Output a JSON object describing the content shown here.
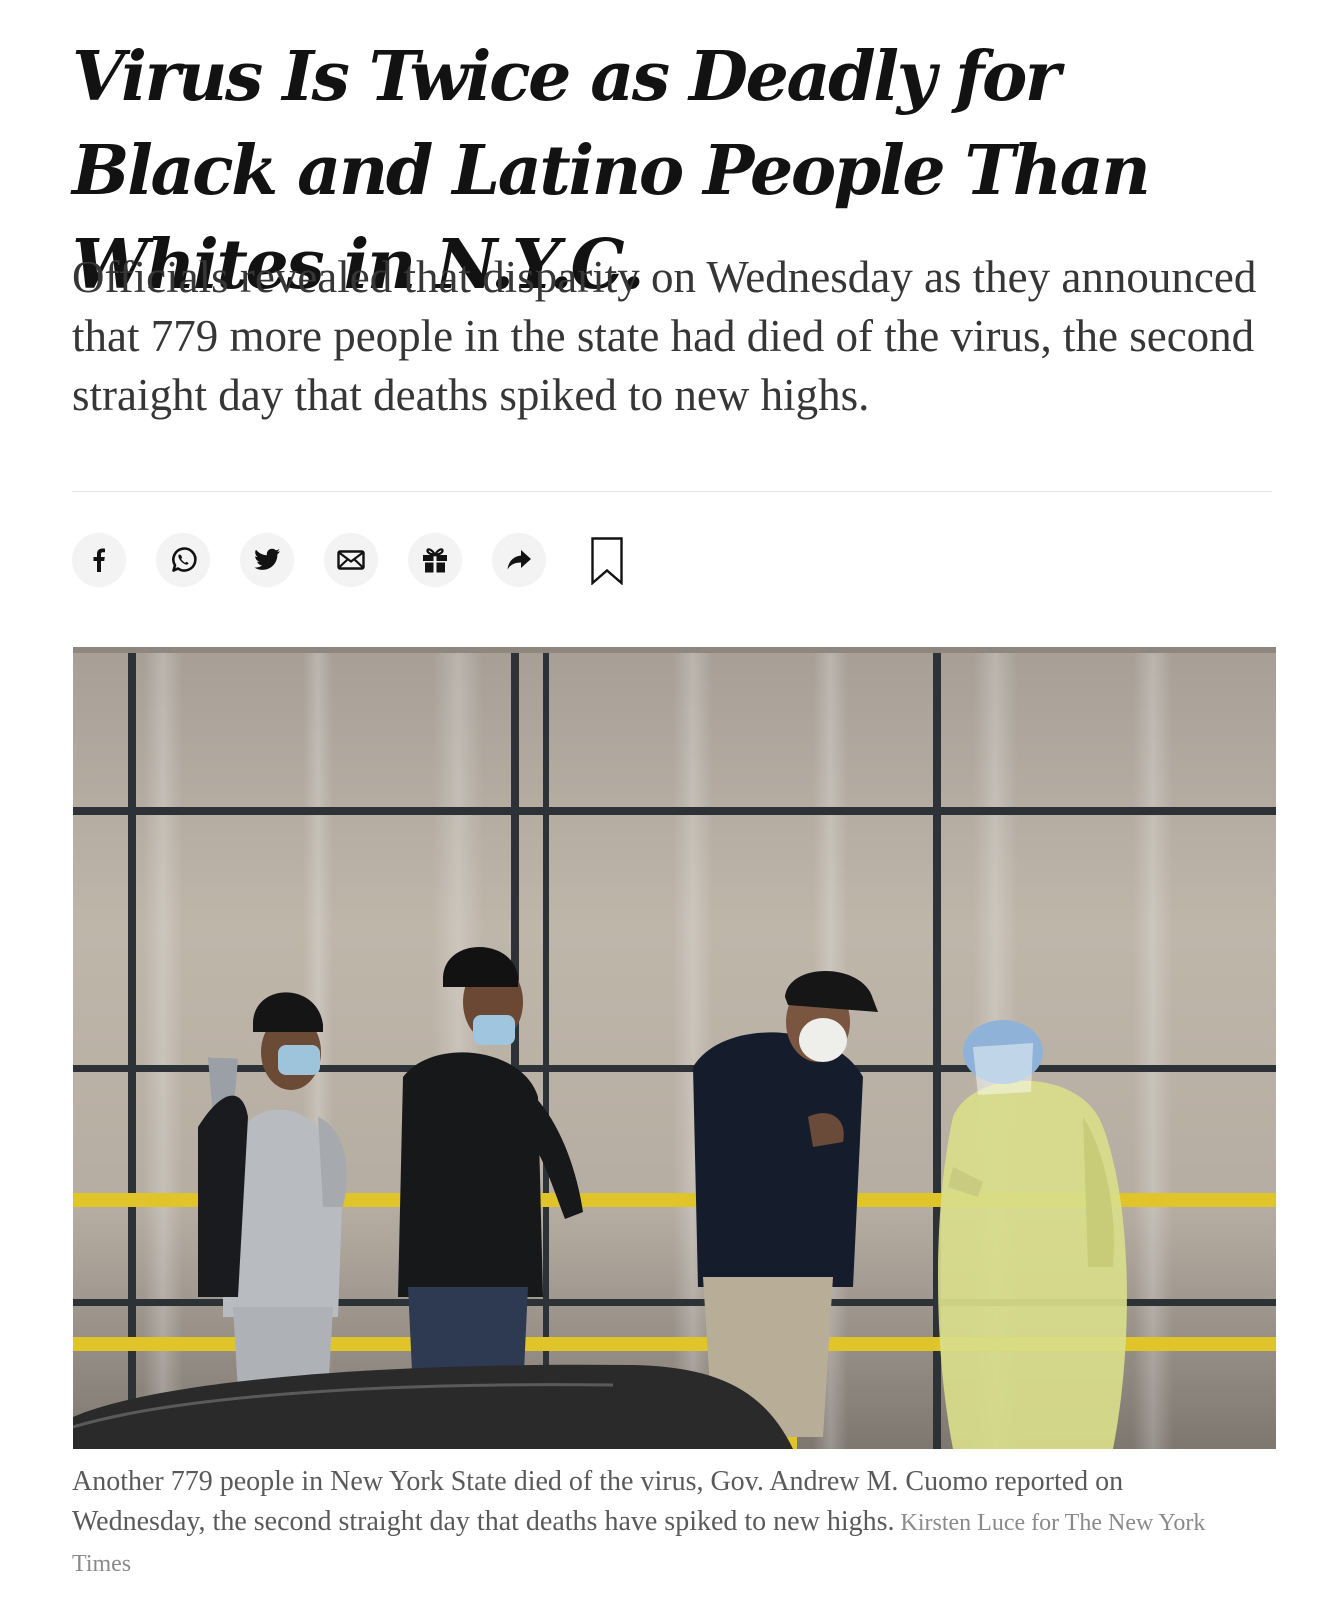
{
  "article": {
    "headline": "Virus Is Twice as Deadly for Black and Latino People Than Whites in N.Y.C.",
    "summary": "Officials revealed that disparity on Wednesday as they announced that 779 more people in the state had died of the virus, the second straight day that deaths spiked to new highs."
  },
  "share_bar": {
    "buttons": [
      {
        "icon": "facebook-icon"
      },
      {
        "icon": "whatsapp-icon"
      },
      {
        "icon": "twitter-icon"
      },
      {
        "icon": "email-icon"
      },
      {
        "icon": "gift-icon"
      },
      {
        "icon": "share-arrow-icon"
      },
      {
        "icon": "bookmark-icon"
      }
    ]
  },
  "figure": {
    "caption": "Another 779 people in New York State died of the virus, Gov. Andrew M. Cuomo reported on Wednesday, the second straight day that deaths have spiked to new highs.",
    "credit": "Kirsten Luce for The New York Times"
  },
  "colors": {
    "text_primary": "#121212",
    "text_summary": "#363636",
    "text_caption": "#5a5a5a",
    "share_button_bg": "#f3f3f3",
    "gown_yellow": "#d9dd8a",
    "rail_yellow": "#e0c52a"
  }
}
